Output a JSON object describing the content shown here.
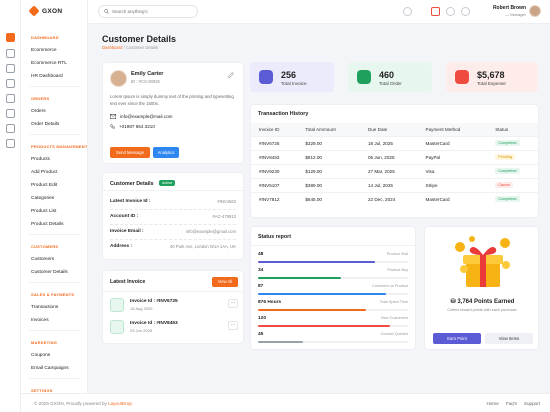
{
  "app": {
    "brand": "GXON"
  },
  "sidebar": {
    "sections": [
      {
        "title": "DASHBOARD",
        "items": [
          "Ecommerce",
          "Ecommerce RTL",
          "HR Dashboard"
        ]
      },
      {
        "title": "ORDERS",
        "items": [
          "Orders",
          "Order Details"
        ]
      },
      {
        "title": "PRODUCTS MANAGEMENT",
        "items": [
          "Products",
          "Add Product",
          "Product Edit",
          "Categories",
          "Product List",
          "Product Details"
        ]
      },
      {
        "title": "CUSTOMERS",
        "items": [
          "Customers",
          "Customer Details"
        ]
      },
      {
        "title": "SALES & PAYMENTS",
        "items": [
          "Transactions",
          "Invoices"
        ]
      },
      {
        "title": "MARKETING",
        "items": [
          "Coupons",
          "Email Campaigns"
        ]
      },
      {
        "title": "SETTINGS",
        "items": []
      }
    ]
  },
  "header": {
    "search_placeholder": "Search anything's",
    "user_name": "Robert Brown",
    "user_role": "Manager"
  },
  "page": {
    "title": "Customer Details",
    "breadcrumb_home": "Dashboard",
    "breadcrumb_sep": "/",
    "breadcrumb_current": "Customer Details"
  },
  "profile": {
    "name": "Emily Carter",
    "id": "ID : #CS-00025",
    "bio": "Lorem Ipsum is simply dummy text of the printing and typesetting text ever since the 1500s.",
    "email": "info@example@mail.com",
    "phone": "+01987 654 3210",
    "send_message": "Send Message",
    "analytics": "Analytics"
  },
  "customer_details": {
    "title": "Customer Details",
    "badge": "Active",
    "rows": [
      {
        "label": "Latest Invoice Id :",
        "value": "#INV4563"
      },
      {
        "label": "Account ID :",
        "value": "#AC-478912"
      },
      {
        "label": "Invoice Email :",
        "value": "info@example@gmail.com"
      },
      {
        "label": "Address :",
        "value": "40 Park Ave, London W1A 1AA, UK"
      }
    ]
  },
  "latest_invoice": {
    "title": "Latest Invoice",
    "view_all": "View All",
    "items": [
      {
        "id": "Invoice Id : #INV6725",
        "date": "18 Aug 2025"
      },
      {
        "id": "Invoice Id : #INV8453",
        "date": "03 Jun 2025"
      }
    ]
  },
  "stats": [
    {
      "value": "256",
      "label": "Total Invoice",
      "bg": "#ecebfb",
      "accent": "#5b5bd6"
    },
    {
      "value": "460",
      "label": "Total Order",
      "bg": "#e7f6ef",
      "accent": "#1fa15d"
    },
    {
      "value": "$5,678",
      "label": "Total Expense",
      "bg": "#fdecea",
      "accent": "#ef4b3f"
    }
  ],
  "transactions": {
    "title": "Transaction History",
    "columns": [
      "Invoice ID",
      "Total Ammount",
      "Due Date",
      "Payment Method",
      "Status"
    ],
    "rows": [
      {
        "id": "#INV6725",
        "amount": "$329.00",
        "due": "18 Jul, 2025",
        "method": "MasterCard",
        "status": "Completed"
      },
      {
        "id": "#INV8453",
        "amount": "$812.00",
        "due": "05 Jun, 2025",
        "method": "PayPal",
        "status": "Pending"
      },
      {
        "id": "#INV9230",
        "amount": "$129.00",
        "due": "27 Mar, 2025",
        "method": "Visa",
        "status": "Completed"
      },
      {
        "id": "#INV5107",
        "amount": "$389.00",
        "due": "14 Jul, 2025",
        "method": "Stripe",
        "status": "Cancel"
      },
      {
        "id": "#INV7812",
        "amount": "$645.00",
        "due": "22 Dec, 2024",
        "method": "MasterCard",
        "status": "Completed"
      }
    ]
  },
  "status_report": {
    "title": "Status report",
    "rows": [
      {
        "value": "48",
        "label": "Product Visit",
        "fraction": 0.78,
        "color": "#5b5bd6"
      },
      {
        "value": "34",
        "label": "Product Buy",
        "fraction": 0.55,
        "color": "#1fa15d"
      },
      {
        "value": "87",
        "label": "Comment on Product",
        "fraction": 0.85,
        "color": "#2e86f0"
      },
      {
        "value": "876 Hours",
        "label": "Total Spent Time",
        "fraction": 0.72,
        "color": "#f26b1d"
      },
      {
        "value": "120",
        "label": "New Customers",
        "fraction": 0.88,
        "color": "#ef4b3f"
      },
      {
        "value": "45",
        "label": "Contact Queries",
        "fraction": 0.3,
        "color": "#9aa0aa"
      }
    ]
  },
  "points": {
    "title": "3,764 Points Earned",
    "subtitle": "Collect reward points with each purchase.",
    "earn": "Earn Point",
    "view": "View Items"
  },
  "footer": {
    "copyright_prefix": "© 2025 GXON, Proudly powered by",
    "company": "LayoutDrop",
    "links": [
      "Home",
      "Faq's",
      "Support"
    ]
  }
}
